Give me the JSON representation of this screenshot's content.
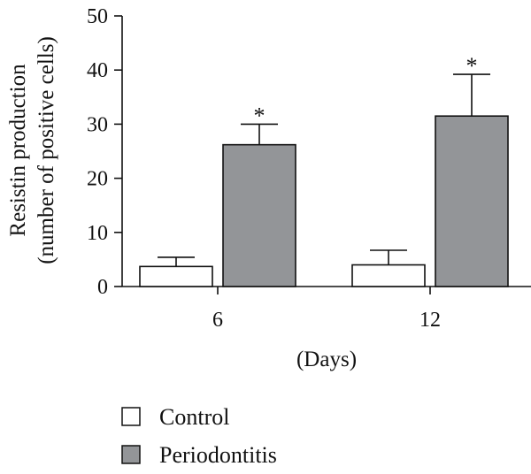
{
  "chart_data": {
    "type": "bar",
    "categories": [
      "6",
      "12"
    ],
    "series": [
      {
        "name": "Control",
        "color": "#ffffff",
        "values": [
          3.7,
          4.0
        ],
        "errors": [
          1.7,
          2.7
        ],
        "significance": [
          "",
          ""
        ]
      },
      {
        "name": "Periodontitis",
        "color": "#939598",
        "values": [
          26.2,
          31.5
        ],
        "errors": [
          3.8,
          7.7
        ],
        "significance": [
          "*",
          "*"
        ]
      }
    ],
    "title": "",
    "xlabel": "(Days)",
    "ylabel_lines": [
      "Resistin production",
      "(number of positive cells)"
    ],
    "ylim": [
      0,
      50
    ],
    "yticks": [
      0,
      10,
      20,
      30,
      40,
      50
    ],
    "grid": false,
    "legend_position": "bottom-left"
  }
}
